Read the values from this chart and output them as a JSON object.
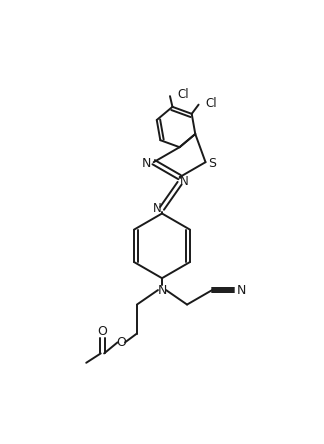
{
  "background": "#ffffff",
  "line_color": "#1a1a1a",
  "line_width": 1.4,
  "font_size": 8.5,
  "figsize": [
    3.24,
    4.44
  ],
  "dpi": 100,
  "xlim": [
    0,
    9
  ],
  "ylim": [
    0,
    13
  ]
}
